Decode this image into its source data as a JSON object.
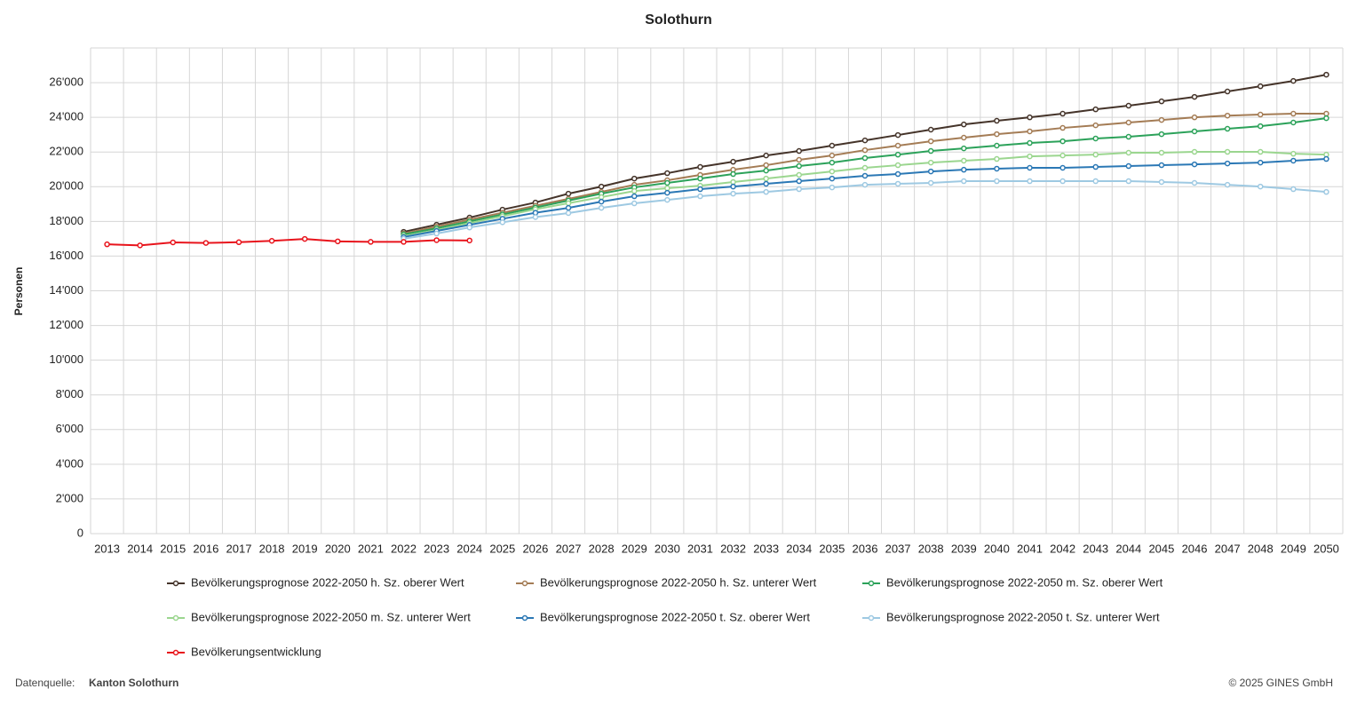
{
  "chart_data": {
    "type": "line",
    "title": "Solothurn",
    "y_label": "Personen",
    "categories": [
      "2013",
      "2014",
      "2015",
      "2016",
      "2017",
      "2018",
      "2019",
      "2020",
      "2021",
      "2022",
      "2023",
      "2024",
      "2025",
      "2026",
      "2027",
      "2028",
      "2029",
      "2030",
      "2031",
      "2032",
      "2033",
      "2034",
      "2035",
      "2036",
      "2037",
      "2038",
      "2039",
      "2040",
      "2041",
      "2042",
      "2043",
      "2044",
      "2045",
      "2046",
      "2047",
      "2048",
      "2049",
      "2050"
    ],
    "ylim": [
      0,
      28000
    ],
    "yticks": [
      0,
      {
        "value": 2000,
        "label": "2'000"
      },
      {
        "value": 4000,
        "label": "4'000"
      },
      {
        "value": 6000,
        "label": "6'000"
      },
      {
        "value": 8000,
        "label": "8'000"
      },
      {
        "value": 10000,
        "label": "10'000"
      },
      {
        "value": 12000,
        "label": "12'000"
      },
      {
        "value": 14000,
        "label": "14'000"
      },
      {
        "value": 16000,
        "label": "16'000"
      },
      {
        "value": 18000,
        "label": "18'000"
      },
      {
        "value": 20000,
        "label": "20'000"
      },
      {
        "value": 22000,
        "label": "22'000"
      },
      {
        "value": 24000,
        "label": "24'000"
      },
      {
        "value": 26000,
        "label": "26'000"
      }
    ],
    "grid": true,
    "series": [
      {
        "name": "Bevölkerungsprognose 2022-2050 h. Sz. oberer Wert",
        "color": "#45342a",
        "values": [
          null,
          null,
          null,
          null,
          null,
          null,
          null,
          null,
          null,
          17400,
          17810,
          18220,
          18680,
          19090,
          19600,
          20010,
          20470,
          20780,
          21140,
          21440,
          21800,
          22060,
          22370,
          22670,
          22980,
          23290,
          23590,
          23800,
          24000,
          24210,
          24460,
          24670,
          24920,
          25180,
          25490,
          25790,
          26100,
          26460
        ]
      },
      {
        "name": "Bevölkerungsprognose 2022-2050 h. Sz. unterer Wert",
        "color": "#a47c55",
        "values": [
          null,
          null,
          null,
          null,
          null,
          null,
          null,
          null,
          null,
          17300,
          17700,
          18100,
          18500,
          18900,
          19300,
          19700,
          20110,
          20370,
          20680,
          20980,
          21240,
          21550,
          21800,
          22110,
          22370,
          22620,
          22830,
          23030,
          23190,
          23390,
          23540,
          23700,
          23850,
          24000,
          24100,
          24160,
          24210,
          24210
        ]
      },
      {
        "name": "Bevölkerungsprognose 2022-2050 m. Sz. oberer Wert",
        "color": "#2ca25a",
        "values": [
          null,
          null,
          null,
          null,
          null,
          null,
          null,
          null,
          null,
          17250,
          17600,
          18000,
          18400,
          18800,
          19200,
          19600,
          19960,
          20220,
          20470,
          20730,
          20930,
          21190,
          21390,
          21650,
          21850,
          22060,
          22210,
          22370,
          22520,
          22620,
          22780,
          22880,
          23030,
          23190,
          23340,
          23490,
          23700,
          23950
        ]
      },
      {
        "name": "Bevölkerungsprognose 2022-2050 m. Sz. unterer Wert",
        "color": "#9bd68f",
        "values": [
          null,
          null,
          null,
          null,
          null,
          null,
          null,
          null,
          null,
          17150,
          17500,
          17900,
          18300,
          18700,
          19050,
          19400,
          19750,
          19910,
          20060,
          20270,
          20470,
          20680,
          20880,
          21090,
          21240,
          21390,
          21500,
          21600,
          21750,
          21800,
          21850,
          21960,
          21960,
          22010,
          22010,
          22010,
          21900,
          21850
        ]
      },
      {
        "name": "Bevölkerungsprognose 2022-2050 t. Sz. oberer Wert",
        "color": "#2b78b5",
        "values": [
          null,
          null,
          null,
          null,
          null,
          null,
          null,
          null,
          null,
          17100,
          17450,
          17800,
          18150,
          18500,
          18780,
          19140,
          19450,
          19650,
          19860,
          20010,
          20170,
          20320,
          20470,
          20630,
          20730,
          20880,
          20980,
          21040,
          21090,
          21090,
          21140,
          21190,
          21240,
          21290,
          21340,
          21390,
          21500,
          21600
        ]
      },
      {
        "name": "Bevölkerungsprognose 2022-2050 t. Sz. unterer Wert",
        "color": "#9ec9e2",
        "values": [
          null,
          null,
          null,
          null,
          null,
          null,
          null,
          null,
          null,
          17000,
          17300,
          17650,
          17950,
          18250,
          18480,
          18780,
          19040,
          19240,
          19450,
          19600,
          19700,
          19860,
          19960,
          20110,
          20170,
          20220,
          20320,
          20320,
          20320,
          20320,
          20320,
          20320,
          20270,
          20220,
          20110,
          20010,
          19860,
          19700
        ]
      },
      {
        "name": "Bevölkerungsentwicklung",
        "color": "#e8141c",
        "values": [
          16680,
          16620,
          16790,
          16760,
          16800,
          16880,
          16990,
          16850,
          16820,
          16820,
          16920,
          16900,
          null,
          null,
          null,
          null,
          null,
          null,
          null,
          null,
          null,
          null,
          null,
          null,
          null,
          null,
          null,
          null,
          null,
          null,
          null,
          null,
          null,
          null,
          null,
          null,
          null,
          null
        ]
      }
    ],
    "source_label": "Datenquelle:",
    "source": "Kanton Solothurn",
    "copyright": "© 2025 GINES GmbH"
  }
}
